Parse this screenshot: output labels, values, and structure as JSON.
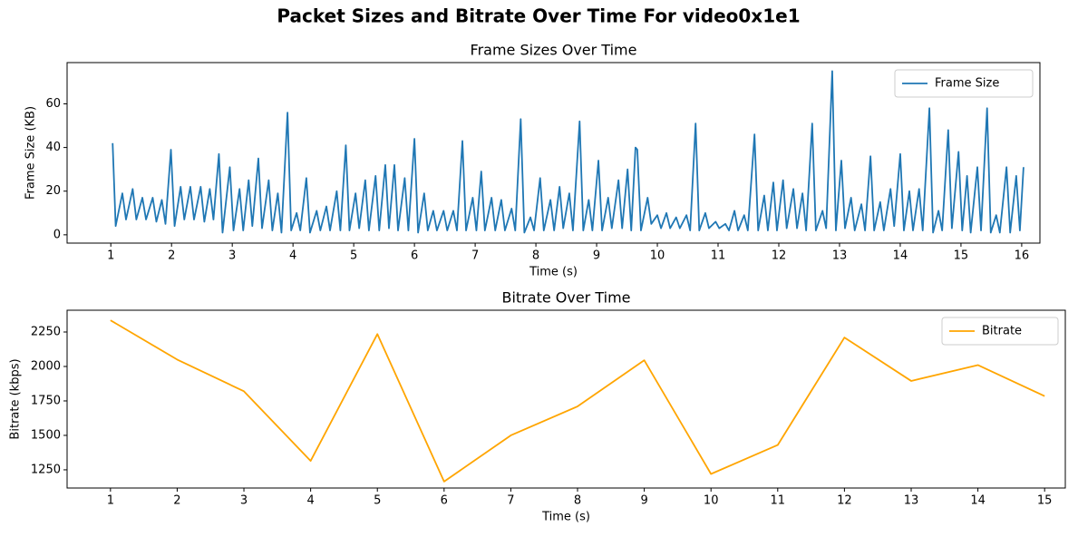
{
  "title": "Packet Sizes and Bitrate Over Time For video0x1e1",
  "chart_data": [
    {
      "type": "line",
      "title": "Frame Sizes Over Time",
      "xlabel": "Time (s)",
      "ylabel": "Frame Size (KB)",
      "legend": "upper right",
      "x": [
        1.03,
        1.08,
        1.19,
        1.25,
        1.36,
        1.42,
        1.52,
        1.58,
        1.69,
        1.75,
        1.84,
        1.9,
        1.99,
        2.05,
        2.15,
        2.21,
        2.31,
        2.37,
        2.48,
        2.54,
        2.63,
        2.69,
        2.78,
        2.84,
        2.96,
        3.02,
        3.12,
        3.18,
        3.27,
        3.33,
        3.43,
        3.49,
        3.6,
        3.66,
        3.75,
        3.81,
        3.91,
        3.97,
        4.06,
        4.12,
        4.22,
        4.28,
        4.39,
        4.45,
        4.55,
        4.61,
        4.72,
        4.78,
        4.87,
        4.93,
        5.03,
        5.09,
        5.19,
        5.25,
        5.36,
        5.42,
        5.52,
        5.58,
        5.67,
        5.73,
        5.84,
        5.9,
        6.0,
        6.06,
        6.16,
        6.22,
        6.31,
        6.37,
        6.48,
        6.54,
        6.64,
        6.7,
        6.79,
        6.85,
        6.96,
        7.02,
        7.1,
        7.16,
        7.27,
        7.33,
        7.43,
        7.49,
        7.6,
        7.66,
        7.75,
        7.81,
        7.91,
        7.97,
        8.07,
        8.13,
        8.24,
        8.3,
        8.39,
        8.45,
        8.55,
        8.61,
        8.72,
        8.78,
        8.87,
        8.93,
        9.03,
        9.09,
        9.19,
        9.25,
        9.36,
        9.42,
        9.51,
        9.57,
        9.64,
        9.67,
        9.73,
        9.84,
        9.9,
        10.0,
        10.06,
        10.15,
        10.21,
        10.31,
        10.37,
        10.48,
        10.54,
        10.63,
        10.69,
        10.79,
        10.85,
        10.96,
        11.02,
        11.12,
        11.18,
        11.27,
        11.33,
        11.43,
        11.49,
        11.6,
        11.66,
        11.76,
        11.82,
        11.91,
        11.97,
        12.07,
        12.13,
        12.24,
        12.3,
        12.39,
        12.45,
        12.55,
        12.61,
        12.72,
        12.78,
        12.88,
        12.94,
        13.03,
        13.09,
        13.19,
        13.25,
        13.36,
        13.42,
        13.51,
        13.57,
        13.67,
        13.73,
        13.84,
        13.9,
        14.0,
        14.06,
        14.15,
        14.21,
        14.31,
        14.37,
        14.48,
        14.54,
        14.63,
        14.69,
        14.79,
        14.85,
        14.96,
        15.02,
        15.1,
        15.16,
        15.27,
        15.33,
        15.43,
        15.49,
        15.58,
        15.64,
        15.75,
        15.81,
        15.91,
        15.97,
        16.03
      ],
      "series": [
        {
          "name": "Frame Size",
          "color": "#1f77b4",
          "values": [
            42,
            4,
            19,
            7,
            21,
            7,
            17,
            7,
            17,
            6,
            16,
            5,
            39,
            4,
            22,
            7,
            22,
            7,
            22,
            6,
            21,
            7,
            37,
            1,
            31,
            2,
            21,
            2,
            25,
            4,
            35,
            3,
            25,
            2,
            19,
            1,
            56,
            2,
            10,
            2,
            26,
            1,
            11,
            2,
            13,
            2,
            20,
            2,
            41,
            2,
            19,
            3,
            25,
            2,
            27,
            2,
            32,
            3,
            32,
            2,
            26,
            2,
            44,
            1,
            19,
            2,
            11,
            2,
            11,
            2,
            11,
            2,
            43,
            2,
            17,
            2,
            29,
            2,
            17,
            2,
            16,
            2,
            12,
            2,
            53,
            1,
            8,
            2,
            26,
            2,
            16,
            2,
            22,
            3,
            19,
            2,
            52,
            2,
            16,
            2,
            34,
            2,
            17,
            3,
            25,
            3,
            30,
            2,
            40,
            39,
            2,
            17,
            5,
            9,
            3,
            10,
            3,
            8,
            3,
            9,
            2,
            51,
            2,
            10,
            3,
            6,
            3,
            5,
            2,
            11,
            2,
            9,
            2,
            46,
            2,
            18,
            2,
            24,
            2,
            25,
            3,
            21,
            3,
            19,
            2,
            51,
            2,
            11,
            3,
            75,
            2,
            34,
            3,
            17,
            2,
            14,
            2,
            36,
            2,
            15,
            2,
            21,
            4,
            37,
            2,
            20,
            2,
            21,
            2,
            58,
            1,
            11,
            2,
            48,
            3,
            38,
            2,
            27,
            1,
            31,
            2,
            58,
            1,
            9,
            1,
            31,
            1,
            27,
            2,
            31
          ]
        }
      ],
      "xlim": [
        0.28,
        16.3
      ],
      "xticks": [
        1,
        2,
        3,
        4,
        5,
        6,
        7,
        8,
        9,
        10,
        11,
        12,
        13,
        14,
        15,
        16
      ],
      "ylim": [
        -3.8,
        78.9
      ],
      "yticks": [
        0,
        20,
        40,
        60
      ]
    },
    {
      "type": "line",
      "title": "Bitrate Over Time",
      "xlabel": "Time (s)",
      "ylabel": "Bitrate (kbps)",
      "legend": "upper right",
      "x": [
        1,
        2,
        3,
        4,
        5,
        6,
        7,
        8,
        9,
        10,
        11,
        12,
        13,
        14,
        15
      ],
      "series": [
        {
          "name": "Bitrate",
          "color": "#ffa500",
          "values": [
            2335,
            2050,
            1820,
            1315,
            2235,
            1165,
            1500,
            1710,
            2045,
            1220,
            1430,
            2210,
            1895,
            2010,
            1785
          ]
        }
      ],
      "xlim": [
        0.35,
        15.31
      ],
      "xticks": [
        1,
        2,
        3,
        4,
        5,
        6,
        7,
        8,
        9,
        10,
        11,
        12,
        13,
        14,
        15
      ],
      "ylim": [
        1118,
        2408
      ],
      "yticks": [
        1250,
        1500,
        1750,
        2000,
        2250
      ]
    }
  ]
}
